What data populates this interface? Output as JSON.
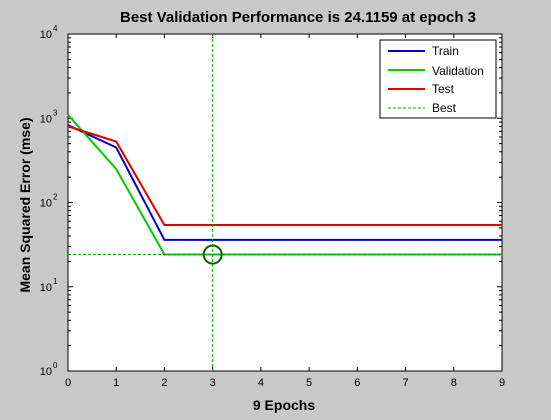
{
  "chart_data": {
    "type": "line",
    "title": "Best Validation Performance is 24.1159 at epoch 3",
    "xlabel": "9 Epochs",
    "ylabel": "Mean Squared Error  (mse)",
    "xlim": [
      0,
      9
    ],
    "ylim": [
      1,
      10000
    ],
    "yscale": "log",
    "xticks": [
      "0",
      "1",
      "2",
      "3",
      "4",
      "5",
      "6",
      "7",
      "8",
      "9"
    ],
    "yticks": [
      {
        "base": "10",
        "exp": "0",
        "value": 1
      },
      {
        "base": "10",
        "exp": "1",
        "value": 10
      },
      {
        "base": "10",
        "exp": "2",
        "value": 100
      },
      {
        "base": "10",
        "exp": "3",
        "value": 1000
      },
      {
        "base": "10",
        "exp": "4",
        "value": 10000
      }
    ],
    "x": [
      0,
      1,
      2,
      3,
      4,
      5,
      6,
      7,
      8,
      9
    ],
    "series": [
      {
        "name": "Train",
        "color": "#0000cc",
        "values": [
          830,
          450,
          36,
          36,
          36,
          36,
          36,
          36,
          36,
          36
        ]
      },
      {
        "name": "Validation",
        "color": "#00cc00",
        "values": [
          1100,
          250,
          24.1159,
          24.1159,
          24.1159,
          24.1159,
          24.1159,
          24.1159,
          24.1159,
          24.1159
        ]
      },
      {
        "name": "Test",
        "color": "#dd0000",
        "values": [
          800,
          530,
          54,
          54,
          54,
          54,
          54,
          54,
          54,
          54
        ]
      }
    ],
    "best": {
      "name": "Best",
      "color": "#00aa00",
      "epoch": 3,
      "value": 24.1159
    },
    "legend_position": "top-right",
    "grid": false
  }
}
